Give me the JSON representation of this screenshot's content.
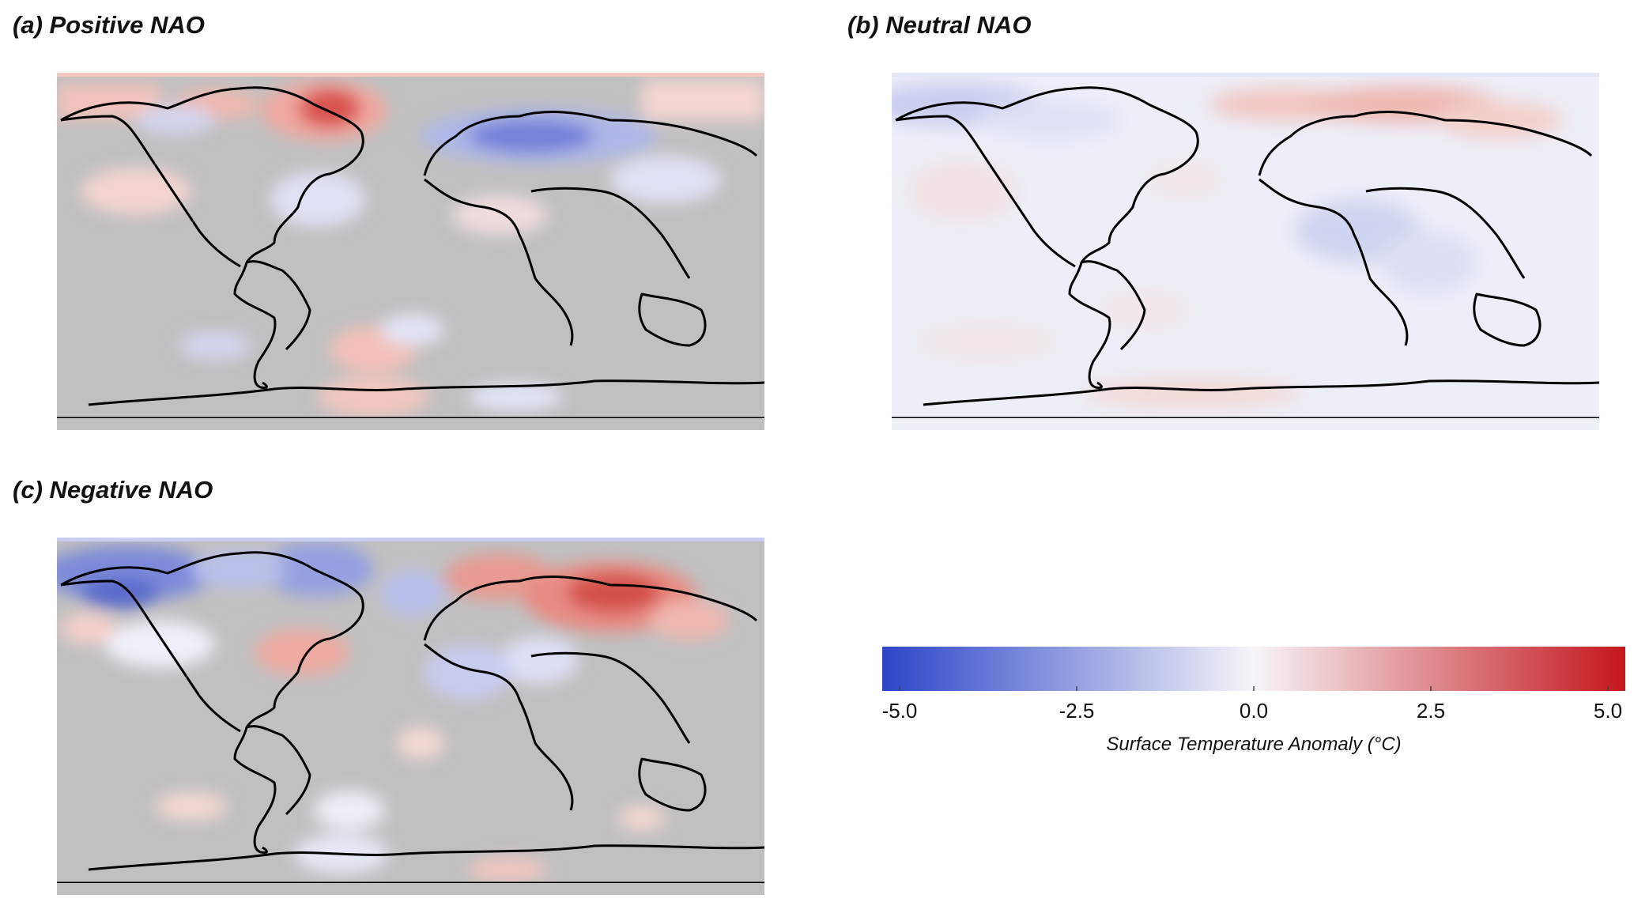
{
  "panels": [
    {
      "id": "a",
      "title": "(a) Positive NAO",
      "background": "grey"
    },
    {
      "id": "b",
      "title": "(b) Neutral NAO",
      "background": "white"
    },
    {
      "id": "c",
      "title": "(c) Negative NAO",
      "background": "grey"
    }
  ],
  "colorbar": {
    "min": -5.0,
    "max": 5.0,
    "ticks": [
      "-5.0",
      "-2.5",
      "0.0",
      "2.5",
      "5.0"
    ],
    "label": "Surface Temperature Anomaly (°C)",
    "colors": {
      "low": "#2b45c8",
      "mid": "#f7f5f8",
      "high": "#c4161c"
    }
  },
  "colors": {
    "insignificant": "#c0c0c0",
    "coast": "#000000"
  }
}
